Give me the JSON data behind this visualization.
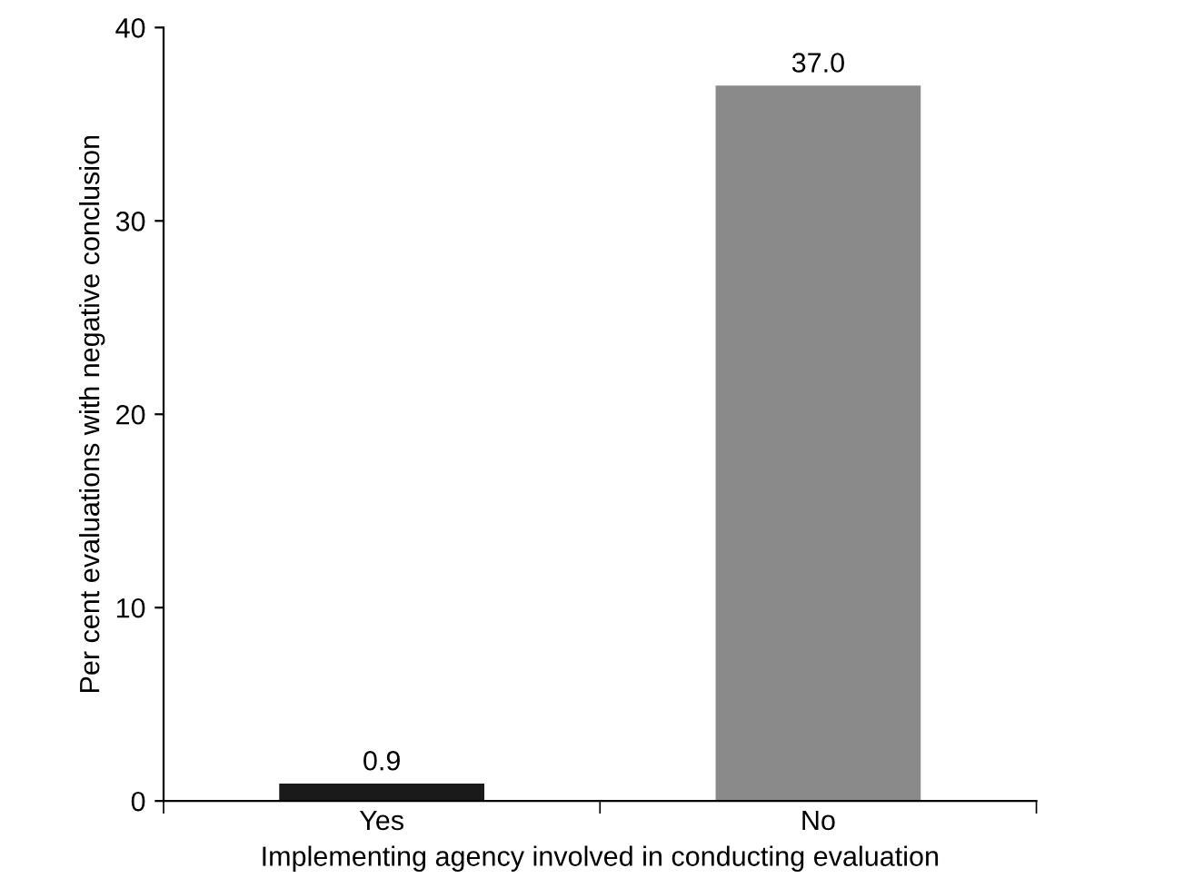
{
  "chart_data": {
    "type": "bar",
    "xlabel": "Implementing agency involved in conducting evaluation",
    "ylabel": "Per cent evaluations with negative conclusion",
    "categories": [
      "Yes",
      "No"
    ],
    "values": [
      0.9,
      37.0
    ],
    "colors": [
      "#1a1a1a",
      "#8a8a8a"
    ],
    "value_labels": [
      "0.9",
      "37.0"
    ],
    "ylim": [
      0,
      40
    ],
    "yticks": [
      0,
      10,
      20,
      30,
      40
    ],
    "grid": false,
    "legend": false
  }
}
